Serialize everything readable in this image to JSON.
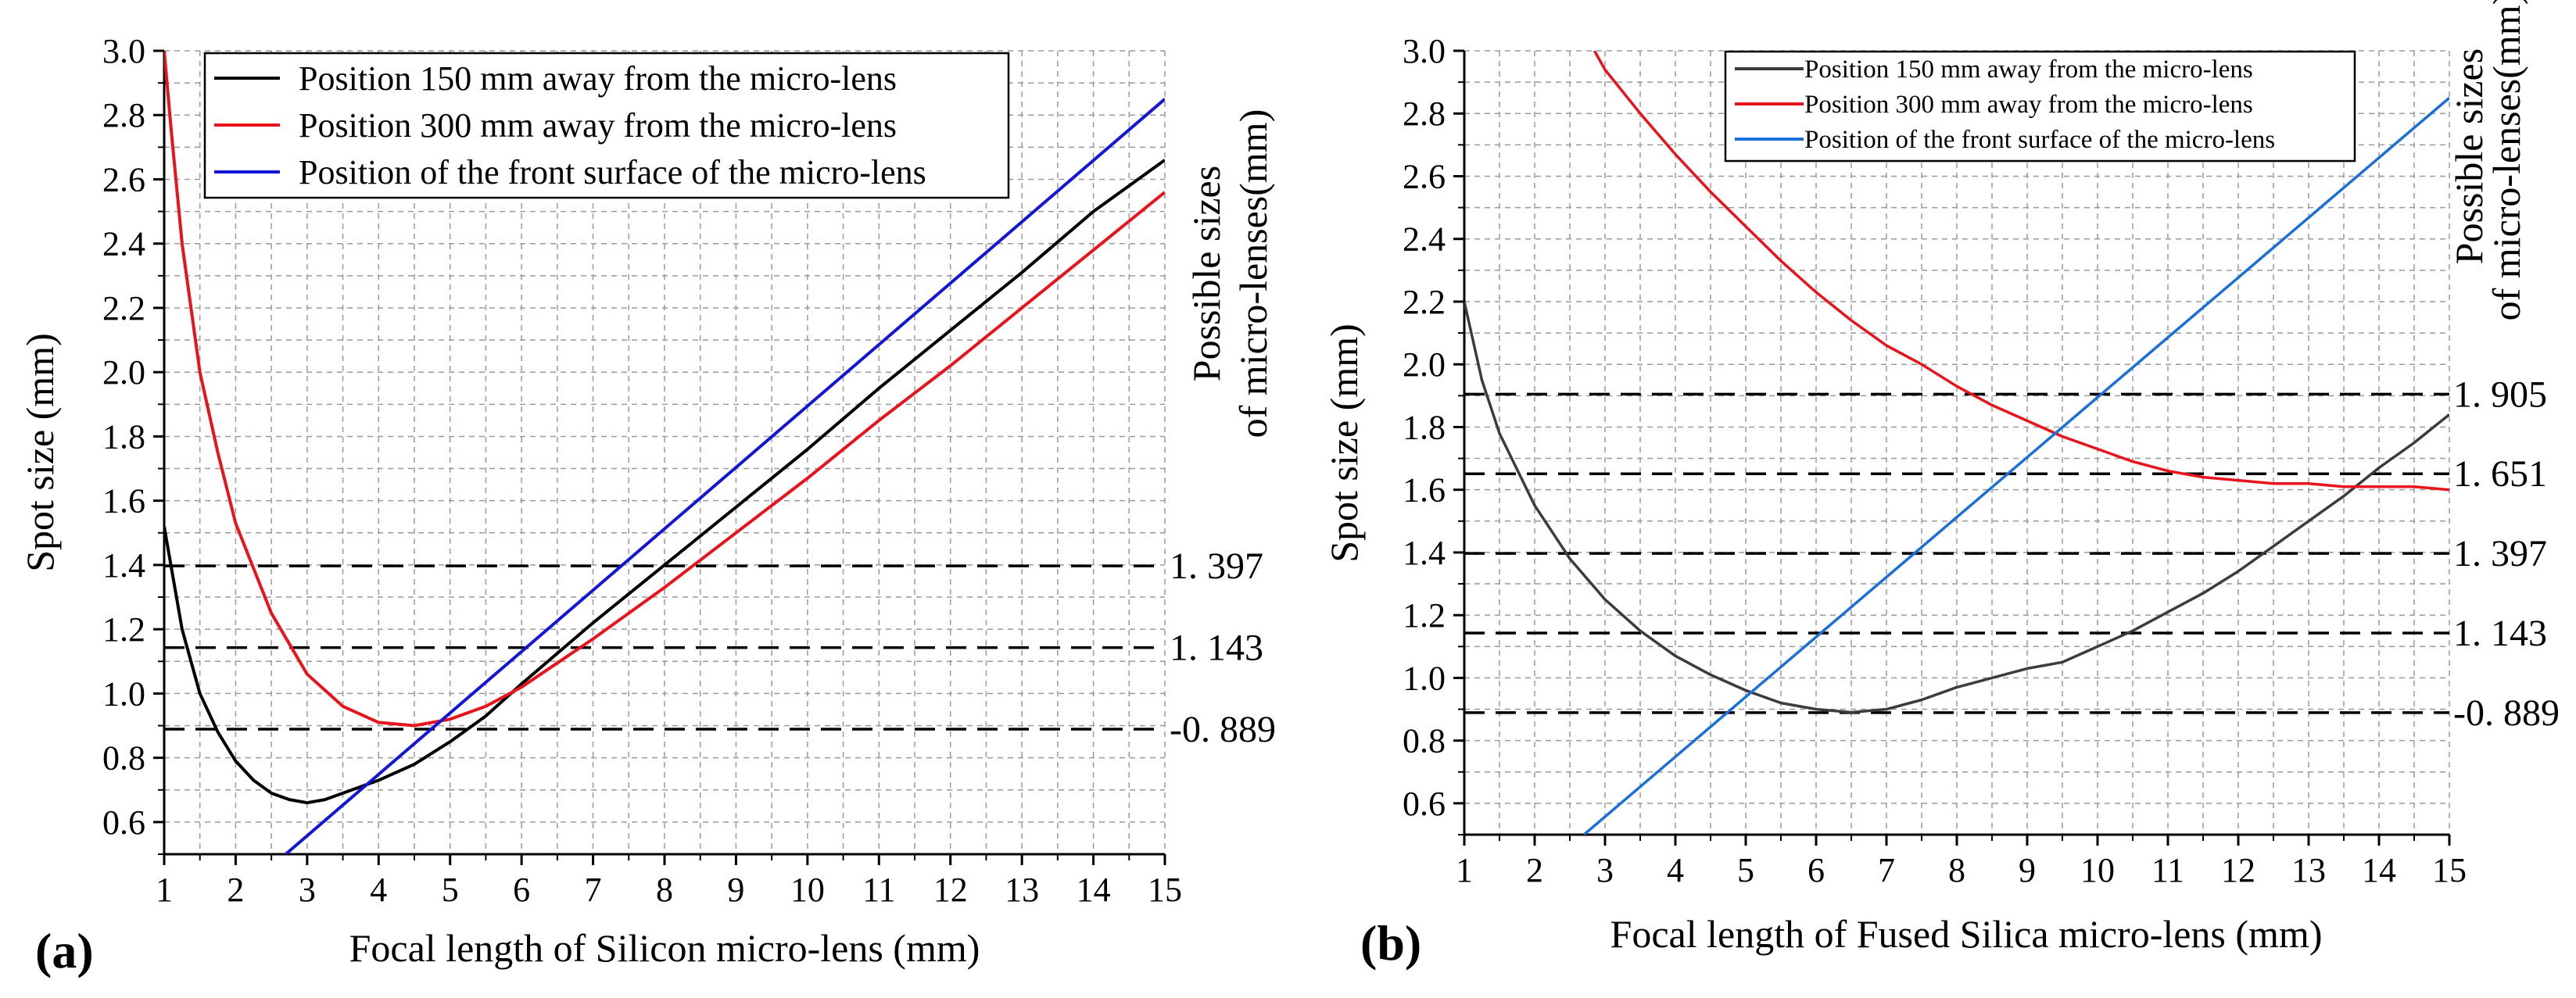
{
  "chart_data": [
    {
      "type": "line",
      "panel_label": "(a)",
      "xlabel": "Focal length of Silicon micro-lens (mm)",
      "ylabel": "Spot size (mm)",
      "right_label": [
        "Possible sizes",
        "of micro-lenses(mm)"
      ],
      "xlim": [
        1,
        15
      ],
      "ylim": [
        0.5,
        3.0
      ],
      "xticks": [
        1,
        2,
        3,
        4,
        5,
        6,
        7,
        8,
        9,
        10,
        11,
        12,
        13,
        14,
        15
      ],
      "yticks": [
        "0.6",
        "0.8",
        "1.0",
        "1.2",
        "1.4",
        "1.6",
        "1.8",
        "2.0",
        "2.2",
        "2.4",
        "2.6",
        "2.8",
        "3.0"
      ],
      "grid": true,
      "legend_position": "top-left",
      "series": [
        {
          "name": "Position 150 mm away from the micro-lens",
          "color": "#000000",
          "x": [
            1.0,
            1.25,
            1.5,
            1.75,
            2.0,
            2.25,
            2.5,
            2.75,
            3.0,
            3.25,
            3.5,
            4.0,
            4.5,
            5.0,
            5.5,
            6.0,
            7.0,
            8.0,
            9.0,
            10.0,
            11.0,
            12.0,
            13.0,
            14.0,
            15.0
          ],
          "values": [
            1.52,
            1.2,
            1.0,
            0.88,
            0.79,
            0.73,
            0.69,
            0.67,
            0.66,
            0.67,
            0.69,
            0.73,
            0.78,
            0.85,
            0.93,
            1.03,
            1.22,
            1.4,
            1.58,
            1.76,
            1.95,
            2.13,
            2.31,
            2.5,
            2.66
          ]
        },
        {
          "name": "Position 300 mm away from the micro-lens",
          "color": "#e8141b",
          "x": [
            1.0,
            1.1,
            1.25,
            1.5,
            1.75,
            2.0,
            2.5,
            3.0,
            3.5,
            4.0,
            4.5,
            5.0,
            5.5,
            6.0,
            7.0,
            8.0,
            9.0,
            10.0,
            11.0,
            12.0,
            13.0,
            14.0,
            15.0
          ],
          "values": [
            3.0,
            2.75,
            2.4,
            2.0,
            1.75,
            1.53,
            1.25,
            1.06,
            0.96,
            0.91,
            0.9,
            0.92,
            0.96,
            1.02,
            1.17,
            1.33,
            1.5,
            1.67,
            1.85,
            2.02,
            2.2,
            2.38,
            2.56
          ]
        },
        {
          "name": "Position of the front surface of the micro-lens",
          "color": "#1515d6",
          "x": [
            2.7,
            15.0
          ],
          "values": [
            0.5,
            2.85
          ]
        }
      ],
      "reference_lines": [
        {
          "y": 1.397,
          "label": "1. 397"
        },
        {
          "y": 1.143,
          "label": "1. 143"
        },
        {
          "y": 0.889,
          "label": "-0. 889"
        }
      ]
    },
    {
      "type": "line",
      "panel_label": "(b)",
      "xlabel": "Focal length of Fused Silica micro-lens (mm)",
      "ylabel": "Spot size (mm)",
      "right_label": [
        "Possible sizes",
        "of micro-lenses(mm)"
      ],
      "xlim": [
        1,
        15
      ],
      "ylim": [
        0.5,
        3.0
      ],
      "xticks": [
        1,
        2,
        3,
        4,
        5,
        6,
        7,
        8,
        9,
        10,
        11,
        12,
        13,
        14,
        15
      ],
      "yticks": [
        "0.6",
        "0.8",
        "1.0",
        "1.2",
        "1.4",
        "1.6",
        "1.8",
        "2.0",
        "2.2",
        "2.4",
        "2.6",
        "2.8",
        "3.0"
      ],
      "grid": true,
      "legend_position": "top-center",
      "series": [
        {
          "name": "Position 150 mm away from the micro-lens",
          "color": "#3c3c3c",
          "x": [
            1.0,
            1.25,
            1.5,
            2.0,
            2.5,
            3.0,
            3.5,
            4.0,
            4.5,
            5.0,
            5.5,
            6.0,
            6.5,
            7.0,
            7.5,
            8.0,
            8.5,
            9.0,
            9.5,
            10.0,
            10.5,
            11.0,
            11.5,
            12.0,
            12.5,
            13.0,
            13.5,
            14.0,
            14.5,
            15.0
          ],
          "values": [
            2.2,
            1.95,
            1.78,
            1.55,
            1.38,
            1.25,
            1.15,
            1.07,
            1.01,
            0.96,
            0.92,
            0.9,
            0.89,
            0.9,
            0.93,
            0.97,
            1.0,
            1.03,
            1.05,
            1.1,
            1.15,
            1.21,
            1.27,
            1.34,
            1.42,
            1.5,
            1.58,
            1.67,
            1.75,
            1.84
          ]
        },
        {
          "name": "Position 300 mm away from the micro-lens",
          "color": "#e8141b",
          "x": [
            2.85,
            3.0,
            3.5,
            4.0,
            4.5,
            5.0,
            5.5,
            6.0,
            6.5,
            7.0,
            7.5,
            8.0,
            8.5,
            9.0,
            9.5,
            10.0,
            10.5,
            11.0,
            11.5,
            12.0,
            12.5,
            13.0,
            13.5,
            14.0,
            14.5,
            15.0
          ],
          "values": [
            3.0,
            2.94,
            2.8,
            2.67,
            2.55,
            2.44,
            2.33,
            2.23,
            2.14,
            2.06,
            2.0,
            1.93,
            1.87,
            1.82,
            1.77,
            1.73,
            1.69,
            1.66,
            1.64,
            1.63,
            1.62,
            1.62,
            1.61,
            1.61,
            1.61,
            1.6
          ]
        },
        {
          "name": "Position of the front surface of the micro-lens",
          "color": "#1a6fd8",
          "x": [
            2.7,
            15.0
          ],
          "values": [
            0.5,
            2.85
          ]
        }
      ],
      "reference_lines": [
        {
          "y": 1.905,
          "label": "1. 905"
        },
        {
          "y": 1.651,
          "label": "1. 651"
        },
        {
          "y": 1.397,
          "label": "1. 397"
        },
        {
          "y": 1.143,
          "label": "1. 143"
        },
        {
          "y": 0.889,
          "label": "-0. 889"
        }
      ]
    }
  ]
}
